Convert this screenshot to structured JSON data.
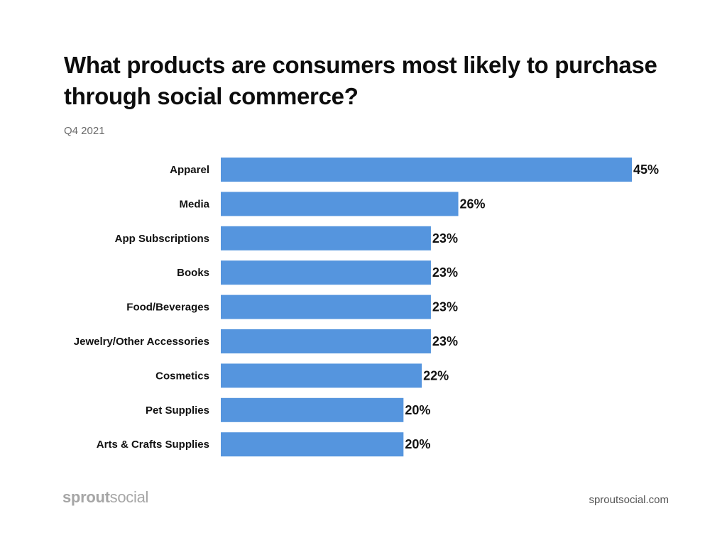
{
  "header": {
    "title": "What products are consumers most likely to purchase through social commerce?",
    "subtitle": "Q4 2021"
  },
  "chart_data": {
    "type": "bar",
    "orientation": "horizontal",
    "title": "What products are consumers most likely to purchase through social commerce?",
    "subtitle": "Q4 2021",
    "categories": [
      "Apparel",
      "Media",
      "App Subscriptions",
      "Books",
      "Food/Beverages",
      "Jewelry/Other Accessories",
      "Cosmetics",
      "Pet Supplies",
      "Arts & Crafts Supplies"
    ],
    "values": [
      45,
      26,
      23,
      23,
      23,
      23,
      22,
      20,
      20
    ],
    "value_labels": [
      "45%",
      "26%",
      "23%",
      "23%",
      "23%",
      "23%",
      "22%",
      "20%",
      "20%"
    ],
    "unit": "%",
    "xlim": [
      0,
      45
    ],
    "grid": false,
    "legend": "none",
    "bar_color": "#5595de"
  },
  "footer": {
    "logo_strong": "sprout",
    "logo_light": "social",
    "url": "sproutsocial.com"
  },
  "colors": {
    "bar": "#5595de",
    "title": "#0d0d0d",
    "subtitle": "#6b6b6b",
    "logo": "#a6a6a6",
    "url": "#555555"
  }
}
